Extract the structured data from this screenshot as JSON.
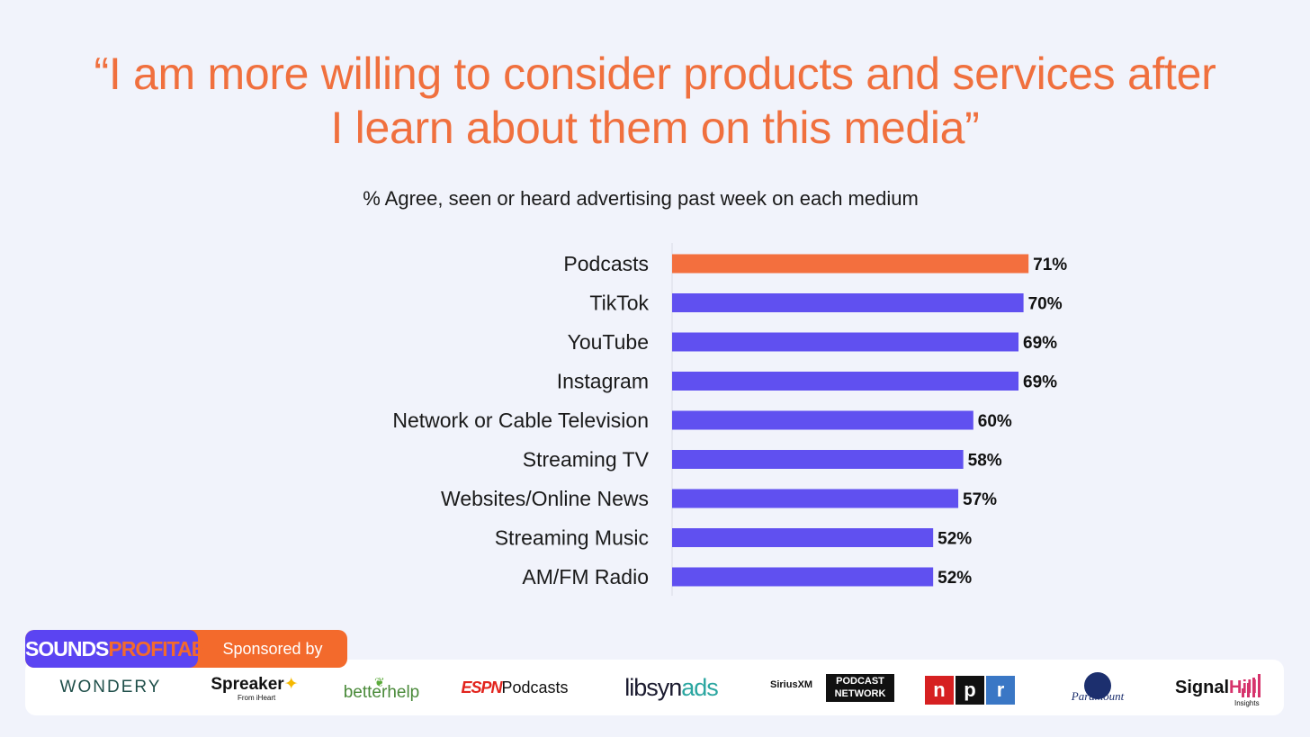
{
  "chart_data": {
    "type": "bar",
    "orientation": "horizontal",
    "title_lines": [
      "“I am more willing to consider products and services after",
      "I learn about them on this media”"
    ],
    "subtitle": "% Agree, seen or heard advertising past week on each medium",
    "categories": [
      "Podcasts",
      "TikTok",
      "YouTube",
      "Instagram",
      "Network or Cable Television",
      "Streaming TV",
      "Websites/Online News",
      "Streaming Music",
      "AM/FM Radio"
    ],
    "values": [
      71,
      70,
      69,
      69,
      60,
      58,
      57,
      52,
      52
    ],
    "value_labels": [
      "71%",
      "70%",
      "69%",
      "69%",
      "60%",
      "58%",
      "57%",
      "52%",
      "52%"
    ],
    "highlight_index": 0,
    "xlim": [
      0,
      100
    ],
    "grid": false,
    "legend": "none",
    "colors": {
      "highlight": "#f36f3e",
      "default": "#6050f0",
      "axis": "#d9dbe6"
    }
  },
  "footer": {
    "brand_part1": "SOUNDS",
    "brand_part2": "PROFITABLE",
    "sponsored_label": "Sponsored by",
    "sponsors": {
      "wondery": "WONDERY",
      "spreaker": "Spreaker",
      "spreaker_sub": "From iHeart",
      "betterhelp": "betterhelp",
      "espn_mark": "ESPN",
      "espn_text": "Podcasts",
      "libsyn": "libsyn",
      "libsyn_ads": "ads",
      "sirius": "SiriusXM",
      "sirius_network_1": "PODCAST",
      "sirius_network_2": "NETWORK",
      "npr_n": "n",
      "npr_p": "p",
      "npr_r": "r",
      "paramount": "Paramount",
      "signal": "Signal",
      "signal_hill": "Hill",
      "signal_sub": "Insights"
    }
  }
}
